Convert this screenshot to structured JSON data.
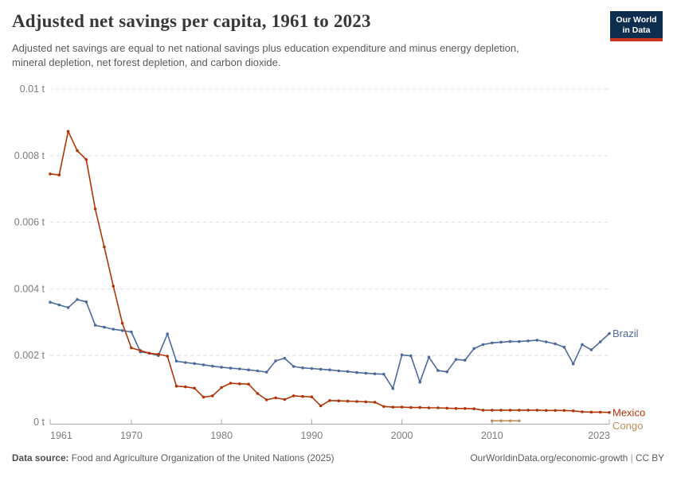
{
  "header": {
    "title": "Adjusted net savings per capita, 1961 to 2023",
    "subtitle_line1": "Adjusted net savings are equal to net national savings plus education expenditure and minus energy depletion,",
    "subtitle_line2": "mineral depletion, net forest depletion, and carbon dioxide.",
    "logo": {
      "line1": "Our World",
      "line2": "in Data",
      "bg_color": "#0d2e4f",
      "accent_color": "#c7361d"
    }
  },
  "chart_data": {
    "type": "line",
    "title": "Adjusted net savings per capita, 1961 to 2023",
    "unit": "t",
    "xlabel": "",
    "ylabel": "",
    "xlim": [
      1961,
      2023
    ],
    "ylim": [
      0,
      0.01
    ],
    "grid": "dashed horizontal gridlines",
    "legend_position": "right edge line labels",
    "yticks": [
      {
        "value": 0,
        "label": "0 t"
      },
      {
        "value": 0.002,
        "label": "0.002 t"
      },
      {
        "value": 0.004,
        "label": "0.004 t"
      },
      {
        "value": 0.006,
        "label": "0.006 t"
      },
      {
        "value": 0.008,
        "label": "0.008 t"
      },
      {
        "value": 0.01,
        "label": "0.01 t"
      }
    ],
    "xticks": [
      {
        "value": 1961,
        "label": "1961"
      },
      {
        "value": 1970,
        "label": "1970"
      },
      {
        "value": 1980,
        "label": "1980"
      },
      {
        "value": 1990,
        "label": "1990"
      },
      {
        "value": 2000,
        "label": "2000"
      },
      {
        "value": 2010,
        "label": "2010"
      },
      {
        "value": 2023,
        "label": "2023"
      }
    ],
    "series": [
      {
        "name": "Brazil",
        "color": "#4C6A9C",
        "start_year": 1961,
        "values": [
          0.0036,
          0.00352,
          0.00344,
          0.00368,
          0.00361,
          0.00291,
          0.00285,
          0.00279,
          0.00275,
          0.00271,
          0.00211,
          0.00207,
          0.002,
          0.00265,
          0.00183,
          0.00179,
          0.00176,
          0.00172,
          0.00168,
          0.00165,
          0.00162,
          0.0016,
          0.00157,
          0.00154,
          0.0015,
          0.00184,
          0.00192,
          0.00167,
          0.00163,
          0.00161,
          0.00159,
          0.00157,
          0.00154,
          0.00152,
          0.00149,
          0.00147,
          0.00145,
          0.00144,
          0.00101,
          0.00202,
          0.00199,
          0.0012,
          0.00195,
          0.00155,
          0.00151,
          0.00188,
          0.00186,
          0.00221,
          0.00233,
          0.00238,
          0.0024,
          0.00242,
          0.00242,
          0.00244,
          0.00246,
          0.00241,
          0.00235,
          0.00225,
          0.00175,
          0.00233,
          0.00217,
          0.00241,
          0.00266
        ]
      },
      {
        "name": "Mexico",
        "color": "#B13507",
        "start_year": 1961,
        "values": [
          0.00745,
          0.00742,
          0.00873,
          0.00815,
          0.00788,
          0.0064,
          0.00526,
          0.00408,
          0.00297,
          0.00223,
          0.00215,
          0.00207,
          0.00204,
          0.00198,
          0.00108,
          0.00106,
          0.00102,
          0.00075,
          0.00079,
          0.00104,
          0.00117,
          0.00115,
          0.00114,
          0.00086,
          0.00067,
          0.00073,
          0.00068,
          0.00079,
          0.00077,
          0.00076,
          0.00049,
          0.00065,
          0.00064,
          0.00063,
          0.00062,
          0.00061,
          0.0006,
          0.00047,
          0.00045,
          0.00045,
          0.00044,
          0.00044,
          0.00043,
          0.00043,
          0.00042,
          0.00041,
          0.00041,
          0.0004,
          0.00036,
          0.00036,
          0.00036,
          0.00036,
          0.00036,
          0.00036,
          0.00036,
          0.00035,
          0.00035,
          0.00035,
          0.00034,
          0.00031,
          0.0003,
          0.0003,
          0.00029
        ]
      },
      {
        "name": "Congo",
        "color": "#BC8E5A",
        "start_year": 2010,
        "values": [
          4e-05,
          4e-05,
          4e-05,
          4e-05
        ]
      }
    ]
  },
  "footer": {
    "data_source_label": "Data source:",
    "data_source": "Food and Agriculture Organization of the United Nations (2025)",
    "url": "OurWorldinData.org/economic-growth",
    "separator": "|",
    "license": "CC BY"
  },
  "colors": {
    "title": "#383838",
    "subtitle": "#5a5a5a",
    "axis_labels": "#7d7d7d",
    "gridline": "#dcdcdc",
    "axis_line": "#a8a8a8"
  }
}
